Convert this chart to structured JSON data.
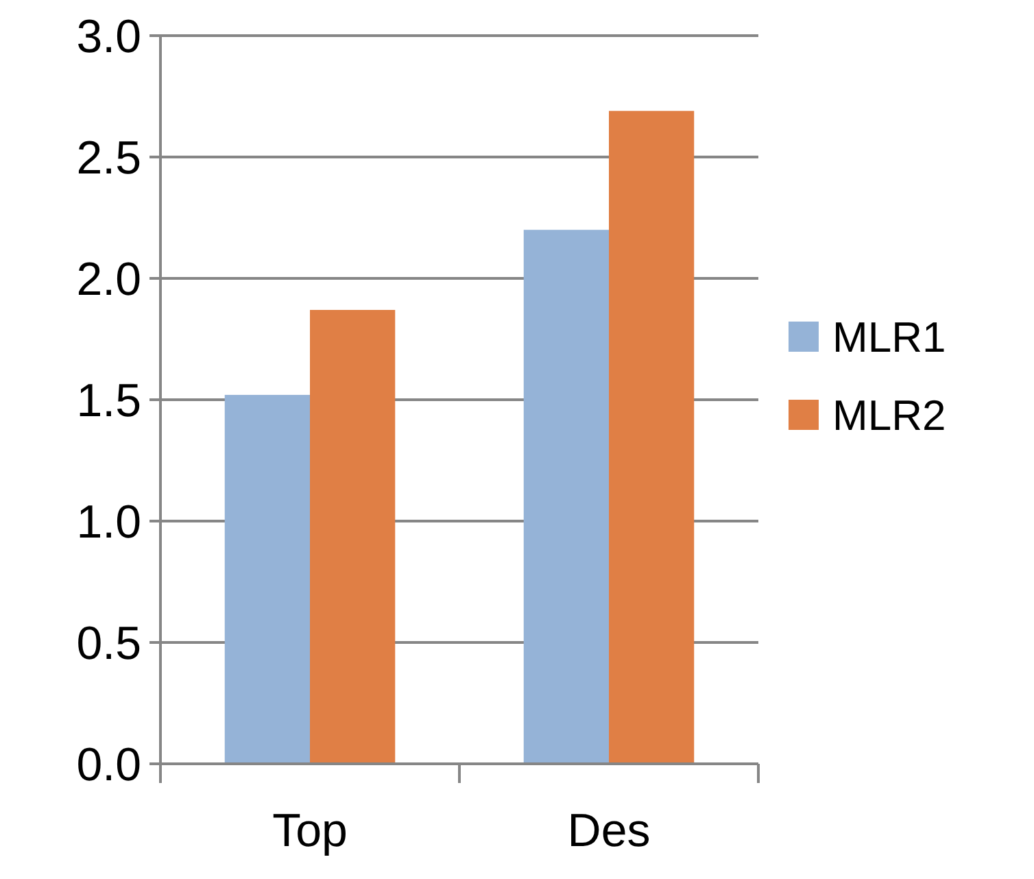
{
  "chart_data": {
    "type": "bar",
    "categories": [
      "Top",
      "Des"
    ],
    "series": [
      {
        "name": "MLR1",
        "color": "#95b3d7",
        "values": [
          1.52,
          2.2
        ]
      },
      {
        "name": "MLR2",
        "color": "#e07f45",
        "values": [
          1.87,
          2.69
        ]
      }
    ],
    "ylim": [
      0,
      3
    ],
    "yticks": [
      {
        "value": 0,
        "label": "0.0"
      },
      {
        "value": 0.5,
        "label": "0.5"
      },
      {
        "value": 1,
        "label": "1.0"
      },
      {
        "value": 1.5,
        "label": "1.5"
      },
      {
        "value": 2,
        "label": "2.0"
      },
      {
        "value": 2.5,
        "label": "2.5"
      },
      {
        "value": 3,
        "label": "3.0"
      }
    ],
    "grid": "y",
    "legend": "right"
  }
}
